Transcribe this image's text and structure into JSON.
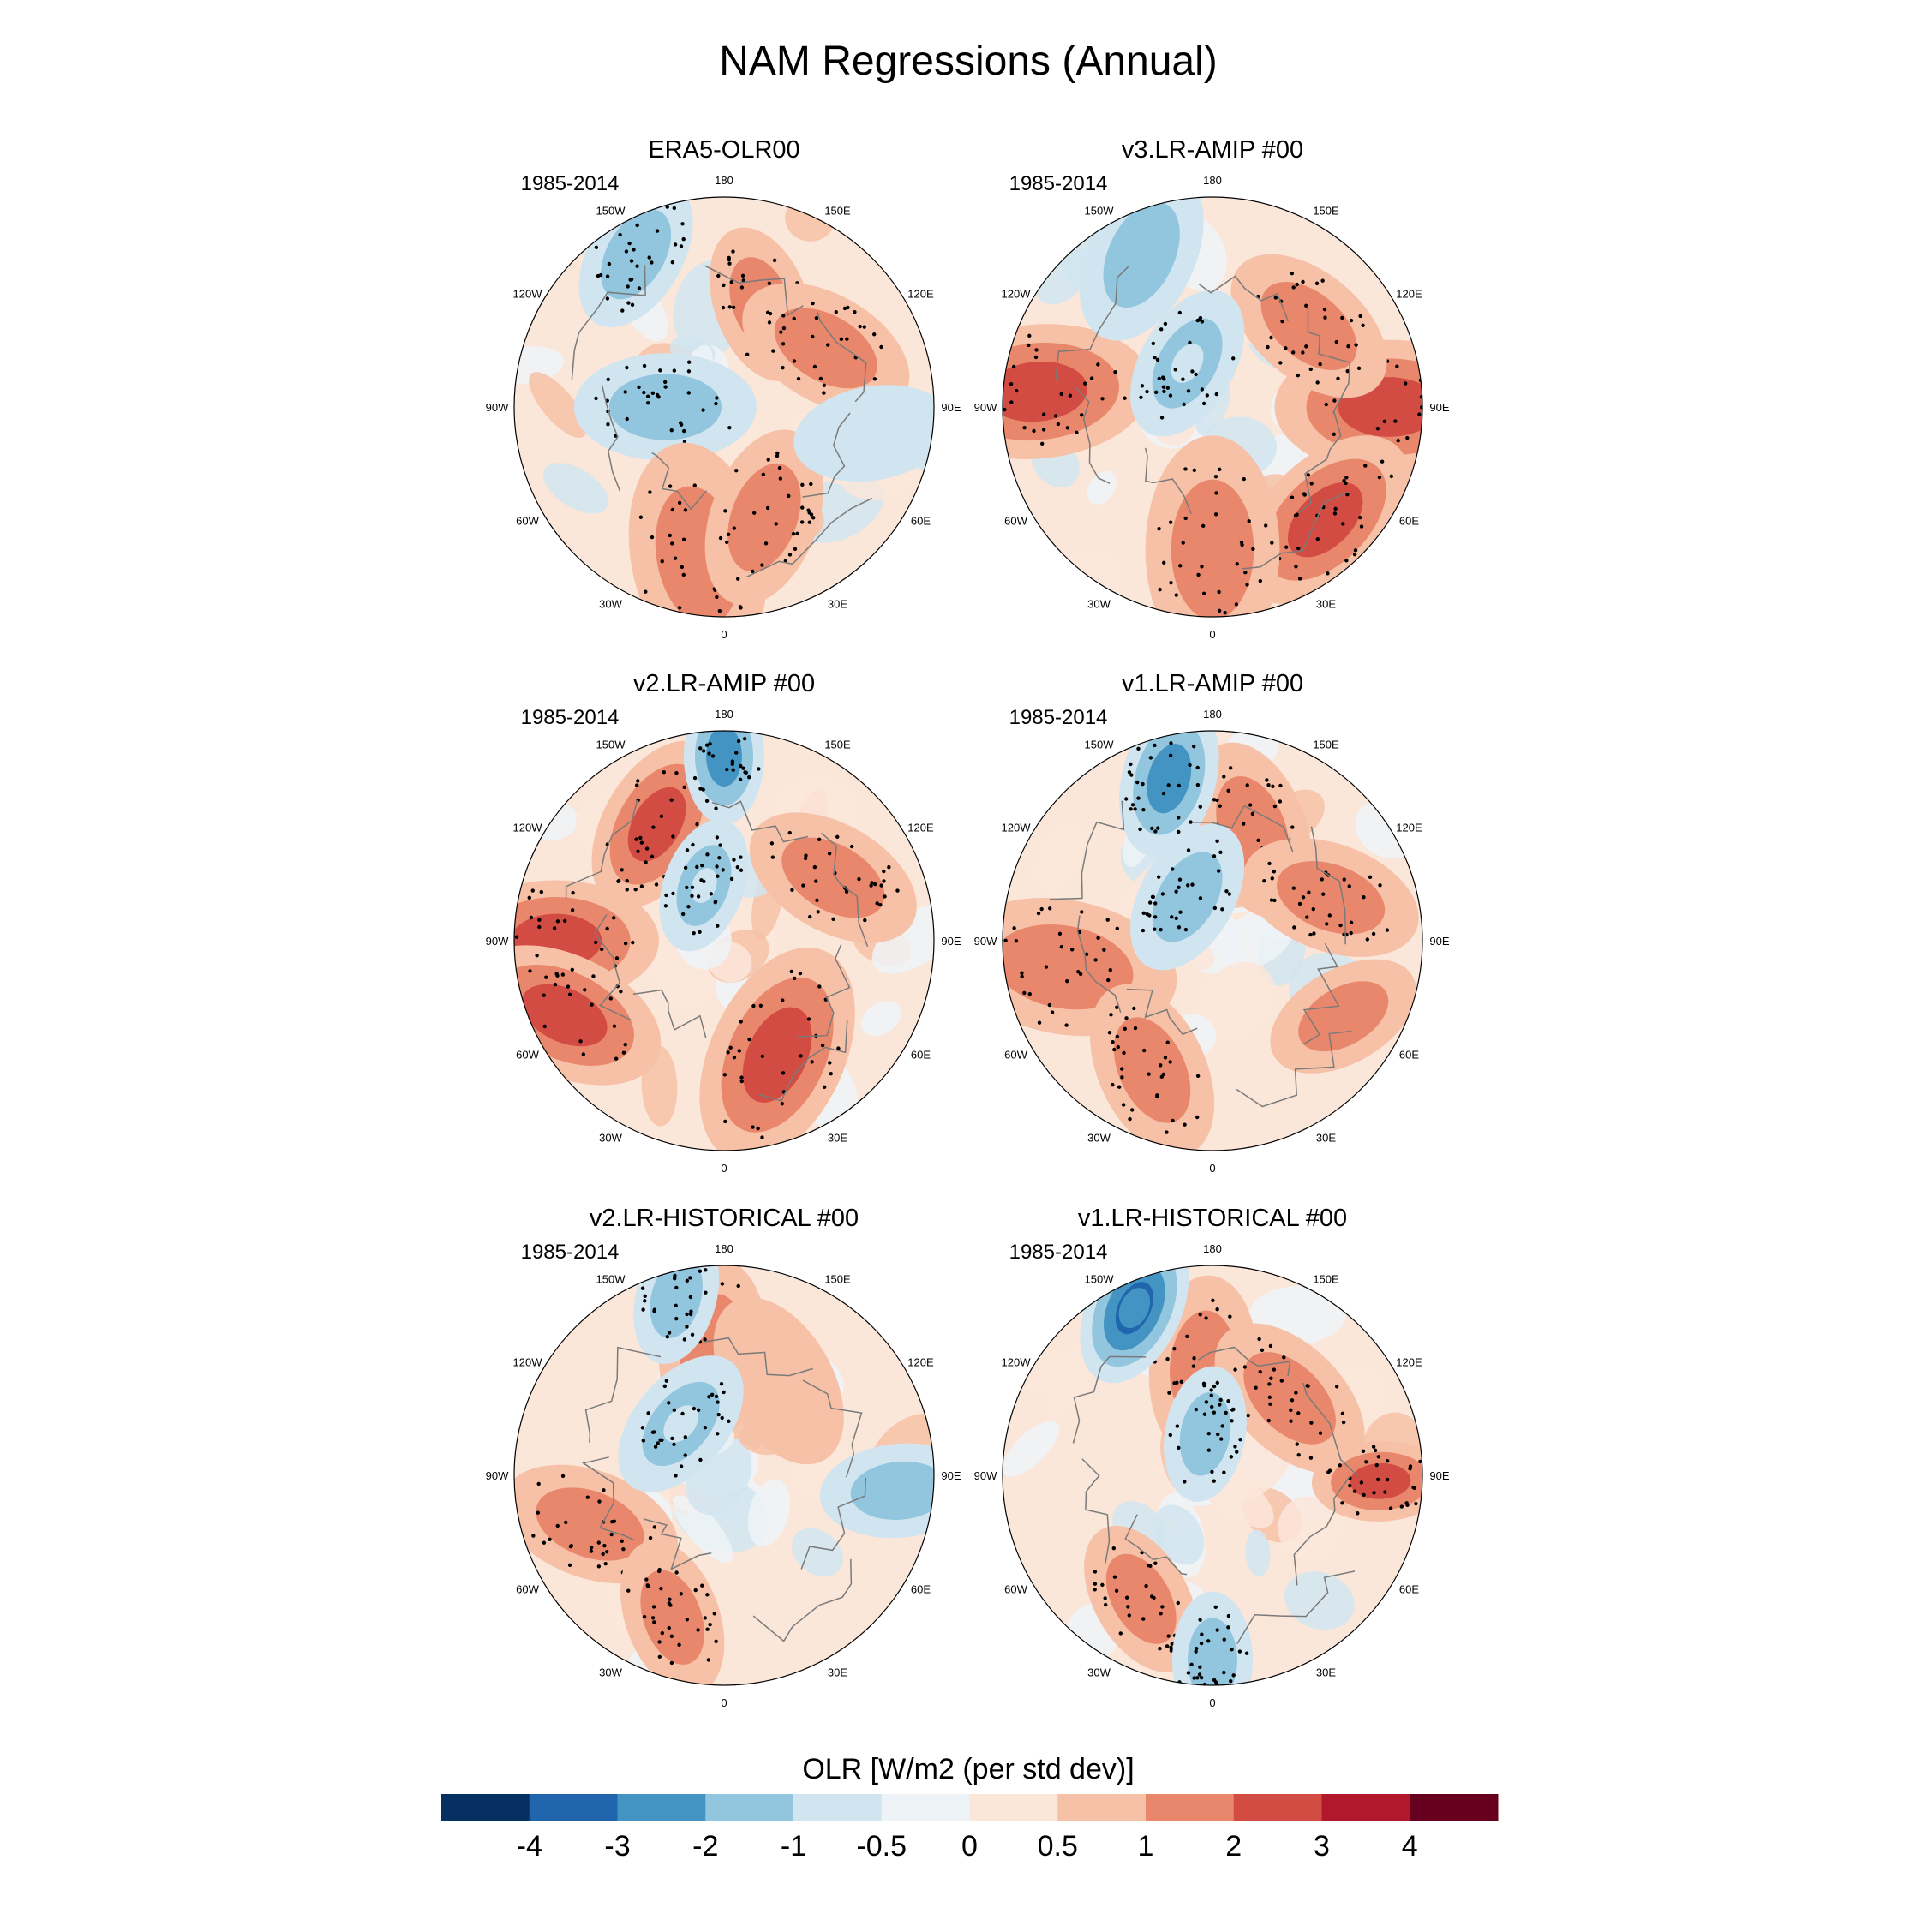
{
  "title": "NAM Regressions (Annual)",
  "period_label": "1985-2014",
  "longitude_labels": [
    "180",
    "150E",
    "120E",
    "90E",
    "60E",
    "30E",
    "0",
    "30W",
    "60W",
    "90W",
    "120W",
    "150W"
  ],
  "panels": [
    {
      "title": "ERA5-OLR00",
      "period": "1985-2014",
      "anomalies": [
        {
          "lon": -90,
          "colat": 14,
          "value": -1.6,
          "spread": 8,
          "sig": true
        },
        {
          "lon": 160,
          "colat": 26,
          "value": 1.2,
          "spread": 7,
          "sig": true
        },
        {
          "lon": 120,
          "colat": 28,
          "value": 1.1,
          "spread": 8,
          "sig": true
        },
        {
          "lon": -10,
          "colat": 36,
          "value": 1.6,
          "spread": 10,
          "sig": true
        },
        {
          "lon": 20,
          "colat": 28,
          "value": 1.4,
          "spread": 8,
          "sig": true
        },
        {
          "lon": -150,
          "colat": 42,
          "value": -1.2,
          "spread": 7,
          "sig": true
        },
        {
          "lon": 80,
          "colat": 36,
          "value": -0.6,
          "spread": 7,
          "sig": false
        }
      ]
    },
    {
      "title": "v3.LR-AMIP  #00",
      "period": "1985-2014",
      "anomalies": [
        {
          "lon": -95,
          "colat": 42,
          "value": 2.2,
          "spread": 10,
          "sig": true
        },
        {
          "lon": 90,
          "colat": 42,
          "value": 2.4,
          "spread": 10,
          "sig": true
        },
        {
          "lon": 45,
          "colat": 38,
          "value": 2.0,
          "spread": 9,
          "sig": true
        },
        {
          "lon": 0,
          "colat": 34,
          "value": 1.7,
          "spread": 10,
          "sig": true
        },
        {
          "lon": 130,
          "colat": 30,
          "value": 1.5,
          "spread": 8,
          "sig": true
        },
        {
          "lon": -155,
          "colat": 40,
          "value": -1.8,
          "spread": 8,
          "sig": false
        },
        {
          "lon": -150,
          "colat": 12,
          "value": -1.0,
          "spread": 7,
          "sig": true
        }
      ]
    },
    {
      "title": "v2.LR-AMIP  #00",
      "period": "1985-2014",
      "anomalies": [
        {
          "lon": -150,
          "colat": 32,
          "value": 2.6,
          "spread": 8,
          "sig": true
        },
        {
          "lon": -90,
          "colat": 40,
          "value": 2.6,
          "spread": 9,
          "sig": true
        },
        {
          "lon": -65,
          "colat": 42,
          "value": 2.5,
          "spread": 9,
          "sig": true
        },
        {
          "lon": 25,
          "colat": 30,
          "value": 2.0,
          "spread": 10,
          "sig": true
        },
        {
          "lon": 120,
          "colat": 30,
          "value": 1.5,
          "spread": 8,
          "sig": true
        },
        {
          "lon": 180,
          "colat": 44,
          "value": -2.2,
          "spread": 6,
          "sig": true
        },
        {
          "lon": -160,
          "colat": 14,
          "value": -1.0,
          "spread": 6,
          "sig": true
        }
      ]
    },
    {
      "title": "v1.LR-AMIP  #00",
      "period": "1985-2014",
      "anomalies": [
        {
          "lon": -80,
          "colat": 36,
          "value": 1.7,
          "spread": 10,
          "sig": true
        },
        {
          "lon": 160,
          "colat": 28,
          "value": 1.5,
          "spread": 8,
          "sig": true
        },
        {
          "lon": 110,
          "colat": 30,
          "value": 1.5,
          "spread": 8,
          "sig": true
        },
        {
          "lon": -25,
          "colat": 34,
          "value": 1.7,
          "spread": 8,
          "sig": true
        },
        {
          "lon": 60,
          "colat": 36,
          "value": 1.6,
          "spread": 7,
          "sig": false
        },
        {
          "lon": -165,
          "colat": 40,
          "value": -2.5,
          "spread": 7,
          "sig": true
        },
        {
          "lon": -150,
          "colat": 12,
          "value": -1.1,
          "spread": 7,
          "sig": true
        }
      ]
    },
    {
      "title": "v2.LR-HISTORICAL  #00",
      "period": "1985-2014",
      "anomalies": [
        {
          "lon": -175,
          "colat": 30,
          "value": 1.4,
          "spread": 8,
          "sig": true
        },
        {
          "lon": -70,
          "colat": 34,
          "value": 1.3,
          "spread": 8,
          "sig": true
        },
        {
          "lon": -20,
          "colat": 36,
          "value": 1.2,
          "spread": 7,
          "sig": true
        },
        {
          "lon": 150,
          "colat": 26,
          "value": 0.9,
          "spread": 8,
          "sig": false
        },
        {
          "lon": -165,
          "colat": 44,
          "value": -1.6,
          "spread": 6,
          "sig": true
        },
        {
          "lon": -140,
          "colat": 16,
          "value": -1.0,
          "spread": 7,
          "sig": true
        },
        {
          "lon": 85,
          "colat": 42,
          "value": -1.2,
          "spread": 7,
          "sig": false
        }
      ]
    },
    {
      "title": "v1.LR-HISTORICAL  #00",
      "period": "1985-2014",
      "anomalies": [
        {
          "lon": -175,
          "colat": 26,
          "value": 1.6,
          "spread": 8,
          "sig": true
        },
        {
          "lon": 135,
          "colat": 26,
          "value": 1.5,
          "spread": 8,
          "sig": true
        },
        {
          "lon": 88,
          "colat": 40,
          "value": 2.3,
          "spread": 6,
          "sig": true
        },
        {
          "lon": -30,
          "colat": 34,
          "value": 1.4,
          "spread": 7,
          "sig": true
        },
        {
          "lon": -155,
          "colat": 44,
          "value": -3.0,
          "spread": 7,
          "sig": false
        },
        {
          "lon": -170,
          "colat": 10,
          "value": -1.8,
          "spread": 6,
          "sig": true
        },
        {
          "lon": 0,
          "colat": 44,
          "value": -1.2,
          "spread": 6,
          "sig": true
        }
      ]
    }
  ],
  "colorbar": {
    "label": "OLR [W/m2 (per std dev)]",
    "tick_labels": [
      "-4",
      "-3",
      "-2",
      "-1",
      "-0.5",
      "0",
      "0.5",
      "1",
      "2",
      "3",
      "4"
    ],
    "levels": [
      -4,
      -3,
      -2,
      -1,
      -0.5,
      0,
      0.5,
      1,
      2,
      3,
      4
    ],
    "colors": [
      "#053061",
      "#2166ac",
      "#4393c3",
      "#92c5de",
      "#d1e5f0",
      "#eef3f7",
      "#fbe6da",
      "#f6c1a6",
      "#e9876c",
      "#d24c43",
      "#b2182b",
      "#67001f"
    ]
  },
  "chart_data": {
    "type": "heatmap",
    "title": "NAM Regressions (Annual)",
    "projection": "north polar stereographic",
    "variable": "OLR [W/m2 (per std dev)]",
    "period": "1985-2014",
    "panels": [
      "ERA5-OLR00",
      "v3.LR-AMIP  #00",
      "v2.LR-AMIP  #00",
      "v1.LR-AMIP  #00",
      "v2.LR-HISTORICAL  #00",
      "v1.LR-HISTORICAL  #00"
    ],
    "levels": [
      -4,
      -3,
      -2,
      -1,
      -0.5,
      0,
      0.5,
      1,
      2,
      3,
      4
    ],
    "legend": "bottom"
  }
}
